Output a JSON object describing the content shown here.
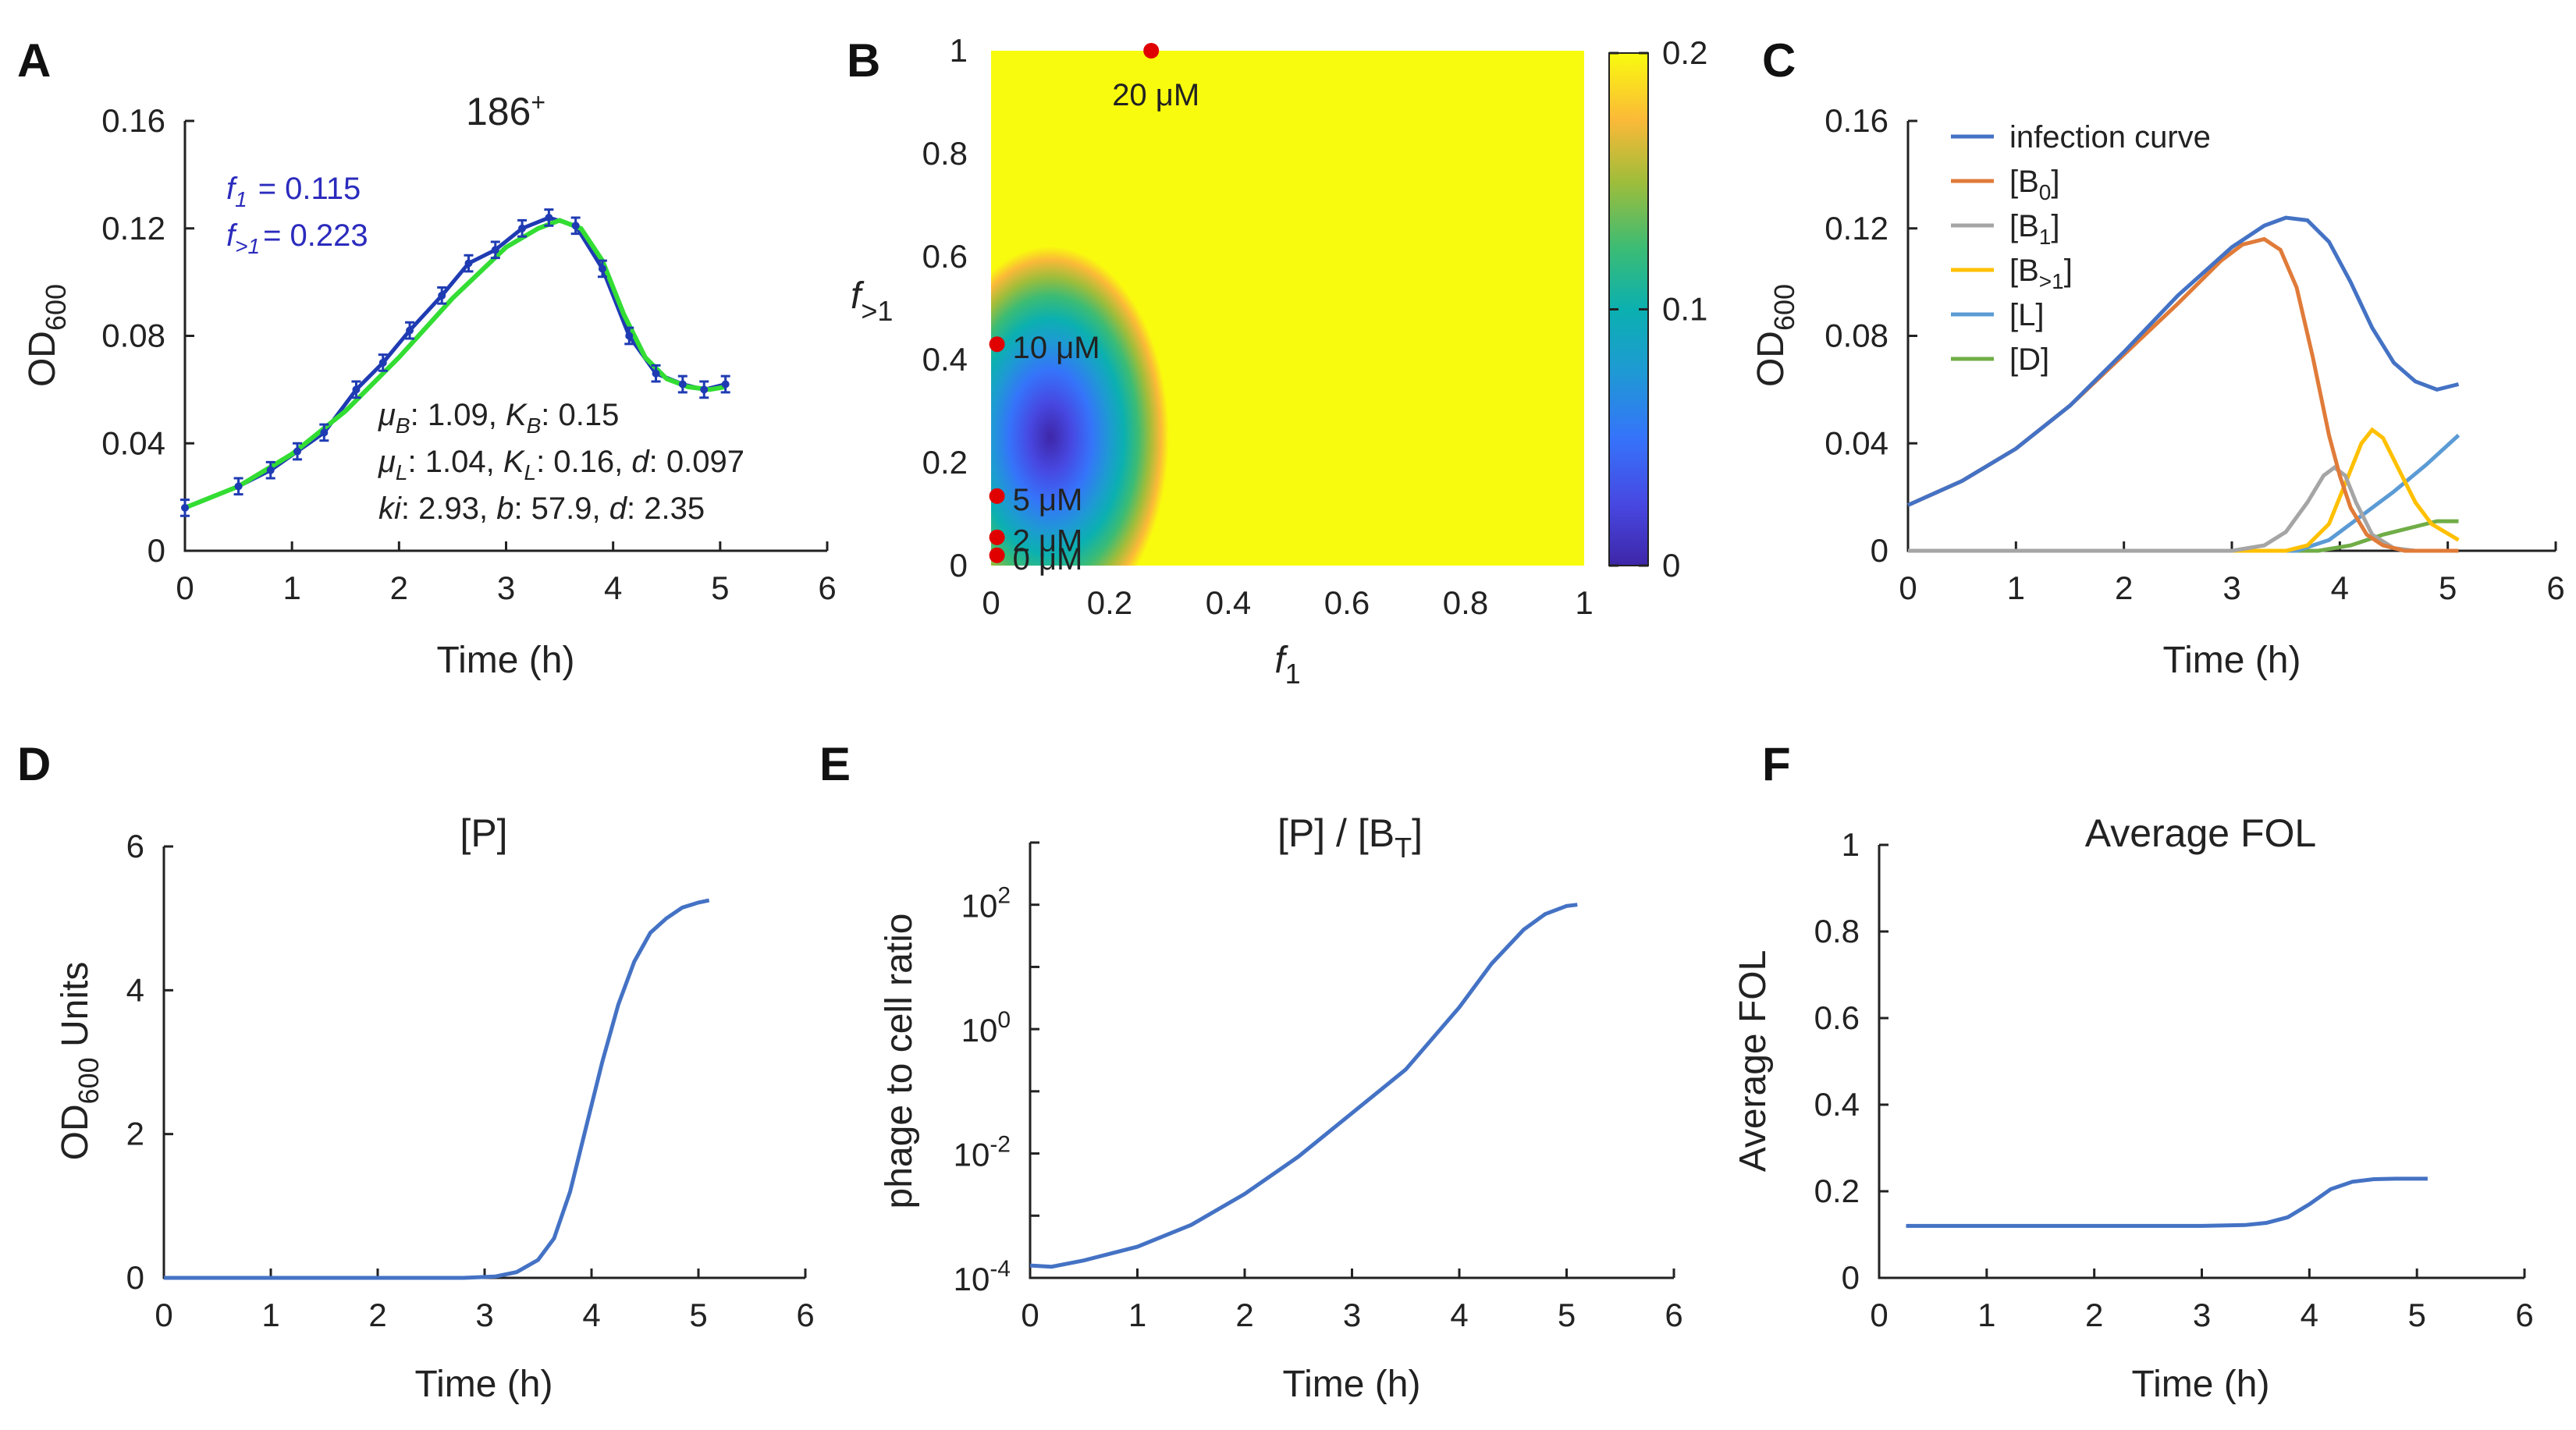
{
  "colors": {
    "blue_line": "#4472c4",
    "orange": "#e07b39",
    "gray": "#a5a5a5",
    "yellow": "#ffc000",
    "lightblue": "#5b9bd5",
    "green": "#70ad47",
    "fit_green": "#33dd33",
    "data_blue": "#1f3bb3",
    "red_dot": "#e00000",
    "annotation_blue": "#2b2bbd"
  },
  "chart_data": [
    {
      "id": "A",
      "panel_label": "A",
      "type": "line",
      "title": "186",
      "title_sup": "+",
      "xlabel": "Time (h)",
      "ylabel_main": "OD",
      "ylabel_sub": "600",
      "xlim": [
        0,
        6
      ],
      "ylim": [
        0,
        0.16
      ],
      "xticks": [
        "0",
        "1",
        "2",
        "3",
        "4",
        "5",
        "6"
      ],
      "yticks": [
        "0",
        "0.04",
        "0.08",
        "0.12",
        "0.16"
      ],
      "ytick_values": [
        0,
        0.04,
        0.08,
        0.12,
        0.16
      ],
      "series": [
        {
          "name": "data",
          "x": [
            0,
            0.5,
            0.8,
            1.05,
            1.3,
            1.6,
            1.85,
            2.1,
            2.4,
            2.65,
            2.9,
            3.15,
            3.4,
            3.65,
            3.9,
            4.15,
            4.4,
            4.65,
            4.85,
            5.05
          ],
          "y": [
            0.016,
            0.024,
            0.03,
            0.037,
            0.044,
            0.06,
            0.07,
            0.082,
            0.095,
            0.107,
            0.112,
            0.12,
            0.124,
            0.121,
            0.105,
            0.08,
            0.066,
            0.062,
            0.06,
            0.062
          ]
        },
        {
          "name": "fit",
          "x": [
            0,
            0.5,
            1,
            1.5,
            2,
            2.5,
            3,
            3.3,
            3.5,
            3.7,
            3.9,
            4.1,
            4.3,
            4.5,
            4.7,
            4.9,
            5.05
          ],
          "y": [
            0.016,
            0.024,
            0.036,
            0.052,
            0.072,
            0.094,
            0.113,
            0.12,
            0.123,
            0.12,
            0.108,
            0.088,
            0.072,
            0.064,
            0.061,
            0.06,
            0.061
          ]
        }
      ],
      "error_bar": 0.003,
      "annotations": {
        "f1_name": "f",
        "f1_sub": "1",
        "f1_value": "= 0.115",
        "fgt1_name": "f",
        "fgt1_sub": ">1",
        "fgt1_value": "= 0.223",
        "line1": [
          {
            "t": "μ",
            "i": true
          },
          {
            "t": "B",
            "i": true,
            "sub": true
          },
          {
            "t": ": 1.09, "
          },
          {
            "t": "K",
            "i": true
          },
          {
            "t": "B",
            "i": true,
            "sub": true
          },
          {
            "t": ": 0.15"
          }
        ],
        "line2": [
          {
            "t": "μ",
            "i": true
          },
          {
            "t": "L",
            "i": true,
            "sub": true
          },
          {
            "t": ": 1.04, "
          },
          {
            "t": "K",
            "i": true
          },
          {
            "t": "L",
            "i": true,
            "sub": true
          },
          {
            "t": ": 0.16, "
          },
          {
            "t": "d",
            "i": true
          },
          {
            "t": ": 0.097"
          }
        ],
        "line3": [
          {
            "t": "ki",
            "i": true
          },
          {
            "t": ": 2.93, "
          },
          {
            "t": "b",
            "i": true
          },
          {
            "t": ": 57.9, "
          },
          {
            "t": "d",
            "i": true
          },
          {
            "t": ": 2.35"
          }
        ]
      }
    },
    {
      "id": "B",
      "panel_label": "B",
      "type": "heatmap",
      "xlabel_main": "f",
      "xlabel_sub": "1",
      "ylabel_main": "f",
      "ylabel_sub": ">1",
      "xlim": [
        0,
        1
      ],
      "ylim": [
        0,
        1
      ],
      "xticks": [
        "0",
        "0.2",
        "0.4",
        "0.6",
        "0.8",
        "1"
      ],
      "yticks": [
        "0",
        "0.2",
        "0.4",
        "0.6",
        "0.8",
        "1"
      ],
      "colorbar": {
        "min": 0,
        "max": 0.2,
        "ticks": [
          "0",
          "0.1",
          "0.2"
        ],
        "tick_values": [
          0,
          0.1,
          0.2
        ]
      },
      "blob": {
        "center_x": 0.1,
        "center_y": 0.25,
        "half_width_x": 0.2,
        "half_height_y": 0.37,
        "min_value": 0.0,
        "max_value": 0.2
      },
      "points": [
        {
          "label": "0 μM",
          "x": 0.01,
          "y": 0.02
        },
        {
          "label": "2 μM",
          "x": 0.01,
          "y": 0.055
        },
        {
          "label": "5 μM",
          "x": 0.01,
          "y": 0.135
        },
        {
          "label": "10 μM",
          "x": 0.01,
          "y": 0.43
        },
        {
          "label": "20 μM",
          "x": 0.27,
          "y": 1.0
        }
      ]
    },
    {
      "id": "C",
      "panel_label": "C",
      "type": "line",
      "xlabel": "Time (h)",
      "ylabel_main": "OD",
      "ylabel_sub": "600",
      "xlim": [
        0,
        6
      ],
      "ylim": [
        0,
        0.16
      ],
      "xticks": [
        "0",
        "1",
        "2",
        "3",
        "4",
        "5",
        "6"
      ],
      "yticks": [
        "0",
        "0.04",
        "0.08",
        "0.12",
        "0.16"
      ],
      "ytick_values": [
        0,
        0.04,
        0.08,
        0.12,
        0.16
      ],
      "legend": [
        {
          "key": "infection",
          "label": "infection curve",
          "sub": "",
          "tail": ""
        },
        {
          "key": "B0",
          "label": "[B",
          "sub": "0",
          "tail": "]"
        },
        {
          "key": "B1",
          "label": "[B",
          "sub": "1",
          "tail": "]"
        },
        {
          "key": "Bgt1",
          "label": "[B",
          "sub": ">1",
          "tail": "]"
        },
        {
          "key": "L",
          "label": "[L]",
          "sub": "",
          "tail": ""
        },
        {
          "key": "D",
          "label": "[D]",
          "sub": "",
          "tail": ""
        }
      ],
      "series": [
        {
          "key": "infection",
          "x": [
            0,
            0.5,
            1,
            1.5,
            2,
            2.5,
            3,
            3.3,
            3.5,
            3.7,
            3.9,
            4.1,
            4.3,
            4.5,
            4.7,
            4.9,
            5.1
          ],
          "y": [
            0.017,
            0.026,
            0.038,
            0.054,
            0.074,
            0.095,
            0.113,
            0.121,
            0.124,
            0.123,
            0.115,
            0.1,
            0.083,
            0.07,
            0.063,
            0.06,
            0.062
          ]
        },
        {
          "key": "B0",
          "x": [
            0,
            0.5,
            1,
            1.5,
            2,
            2.5,
            2.9,
            3.1,
            3.3,
            3.45,
            3.6,
            3.75,
            3.9,
            4.0,
            4.1,
            4.25,
            4.4,
            4.6,
            4.8,
            5.1
          ],
          "y": [
            0.017,
            0.026,
            0.038,
            0.054,
            0.073,
            0.092,
            0.108,
            0.114,
            0.116,
            0.112,
            0.098,
            0.072,
            0.043,
            0.028,
            0.016,
            0.006,
            0.002,
            0.0,
            0.0,
            0.0
          ]
        },
        {
          "key": "B1",
          "x": [
            0,
            3.0,
            3.3,
            3.5,
            3.7,
            3.85,
            3.95,
            4.05,
            4.15,
            4.3,
            4.5,
            4.7,
            5.1
          ],
          "y": [
            0.0,
            0.0,
            0.002,
            0.007,
            0.018,
            0.028,
            0.031,
            0.028,
            0.018,
            0.006,
            0.001,
            0.0,
            0.0
          ]
        },
        {
          "key": "Bgt1",
          "x": [
            0,
            3.5,
            3.7,
            3.9,
            4.05,
            4.2,
            4.3,
            4.4,
            4.55,
            4.7,
            4.85,
            5.1
          ],
          "y": [
            0.0,
            0.0,
            0.002,
            0.01,
            0.025,
            0.04,
            0.045,
            0.042,
            0.03,
            0.018,
            0.01,
            0.004
          ]
        },
        {
          "key": "L",
          "x": [
            0,
            3.6,
            3.9,
            4.2,
            4.5,
            4.8,
            5.1
          ],
          "y": [
            0.0,
            0.0,
            0.004,
            0.013,
            0.022,
            0.032,
            0.043
          ]
        },
        {
          "key": "D",
          "x": [
            0,
            3.8,
            4.1,
            4.4,
            4.7,
            4.9,
            5.1
          ],
          "y": [
            0.0,
            0.0,
            0.002,
            0.006,
            0.009,
            0.011,
            0.011
          ]
        }
      ]
    },
    {
      "id": "D",
      "panel_label": "D",
      "type": "line",
      "title": "[P]",
      "xlabel": "Time (h)",
      "ylabel_main": "OD",
      "ylabel_sub": "600",
      "ylabel_tail": " Units",
      "xlim": [
        0,
        6
      ],
      "ylim": [
        0,
        6
      ],
      "xticks": [
        "0",
        "1",
        "2",
        "3",
        "4",
        "5",
        "6"
      ],
      "yticks": [
        "0",
        "2",
        "4",
        "6"
      ],
      "ytick_values": [
        0,
        2,
        4,
        6
      ],
      "series": [
        {
          "key": "P",
          "x": [
            0,
            1,
            2,
            2.8,
            3.1,
            3.3,
            3.5,
            3.65,
            3.8,
            3.95,
            4.1,
            4.25,
            4.4,
            4.55,
            4.7,
            4.85,
            5.0,
            5.1
          ],
          "y": [
            0.0,
            0.0,
            0.0,
            0.0,
            0.02,
            0.08,
            0.25,
            0.55,
            1.2,
            2.1,
            3.0,
            3.8,
            4.4,
            4.8,
            5.0,
            5.15,
            5.22,
            5.25
          ]
        }
      ]
    },
    {
      "id": "E",
      "panel_label": "E",
      "type": "line",
      "title_main": "[P] / [B",
      "title_sub": "T",
      "title_tail": "]",
      "xlabel": "Time (h)",
      "ylabel": "phage to cell ratio",
      "xlim": [
        0,
        6
      ],
      "ylim_log10": [
        -4,
        3
      ],
      "xticks": [
        "0",
        "1",
        "2",
        "3",
        "4",
        "5",
        "6"
      ],
      "yticks": [
        {
          "base": "10",
          "exp": "-4",
          "v": -4
        },
        {
          "base": "10",
          "exp": "-2",
          "v": -2
        },
        {
          "base": "10",
          "exp": "0",
          "v": 0
        },
        {
          "base": "10",
          "exp": "2",
          "v": 2
        }
      ],
      "series": [
        {
          "key": "ratio",
          "x": [
            0,
            0.2,
            0.5,
            1,
            1.5,
            2,
            2.5,
            3,
            3.5,
            4,
            4.3,
            4.6,
            4.8,
            5.0,
            5.1
          ],
          "log10_y": [
            -3.8,
            -3.82,
            -3.72,
            -3.5,
            -3.15,
            -2.65,
            -2.05,
            -1.35,
            -0.65,
            0.35,
            1.05,
            1.6,
            1.85,
            1.98,
            2.0
          ]
        }
      ]
    },
    {
      "id": "F",
      "panel_label": "F",
      "type": "line",
      "title": "Average FOL",
      "xlabel": "Time (h)",
      "ylabel": "Average FOL",
      "xlim": [
        0,
        6
      ],
      "ylim": [
        0,
        1
      ],
      "xticks": [
        "0",
        "1",
        "2",
        "3",
        "4",
        "5",
        "6"
      ],
      "yticks": [
        "0",
        "0.2",
        "0.4",
        "0.6",
        "0.8",
        "1"
      ],
      "ytick_values": [
        0,
        0.2,
        0.4,
        0.6,
        0.8,
        1
      ],
      "series": [
        {
          "key": "fol",
          "x": [
            0.25,
            1,
            2,
            3,
            3.4,
            3.6,
            3.8,
            4.0,
            4.2,
            4.4,
            4.6,
            4.8,
            5.1
          ],
          "y": [
            0.12,
            0.12,
            0.12,
            0.12,
            0.122,
            0.127,
            0.14,
            0.17,
            0.205,
            0.222,
            0.228,
            0.229,
            0.229
          ]
        }
      ]
    }
  ]
}
